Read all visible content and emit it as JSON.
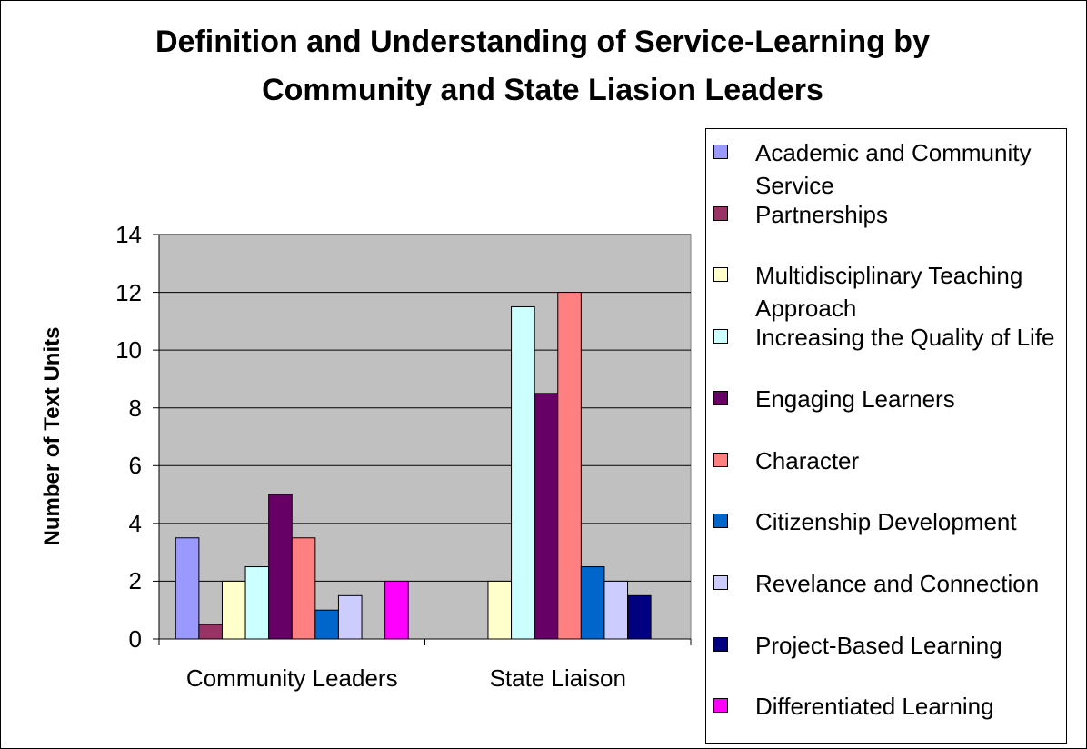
{
  "chart_data": {
    "type": "bar",
    "title": "Definition and Understanding of Service-Learning by Community and State Liasion Leaders",
    "y_label": "Number of Text Units",
    "categories": [
      "Community Leaders",
      "State Liaison"
    ],
    "series": [
      {
        "name": "Academic and Community Service",
        "color": "#9999ff",
        "values": [
          3.5,
          null
        ]
      },
      {
        "name": "Partnerships",
        "color": "#993366",
        "values": [
          0.5,
          null
        ]
      },
      {
        "name": "Multidisciplinary Teaching Approach",
        "color": "#ffffcc",
        "values": [
          2,
          2
        ]
      },
      {
        "name": "Increasing the Quality of Life",
        "color": "#ccffff",
        "values": [
          2.5,
          11.5
        ]
      },
      {
        "name": "Engaging Learners",
        "color": "#660066",
        "values": [
          5,
          8.5
        ]
      },
      {
        "name": "Character",
        "color": "#ff8080",
        "values": [
          3.5,
          12
        ]
      },
      {
        "name": "Citizenship Development",
        "color": "#0066cc",
        "values": [
          1,
          2.5
        ]
      },
      {
        "name": "Revelance and Connection",
        "color": "#ccccff",
        "values": [
          1.5,
          2
        ]
      },
      {
        "name": "Project-Based Learning",
        "color": "#000080",
        "values": [
          null,
          1.5
        ]
      },
      {
        "name": "Differentiated Learning",
        "color": "#ff00ff",
        "values": [
          2,
          null
        ]
      }
    ],
    "ylim": [
      0,
      14
    ],
    "yticks": [
      0,
      2,
      4,
      6,
      8,
      10,
      12,
      14
    ],
    "grid": true,
    "legend": "right"
  }
}
